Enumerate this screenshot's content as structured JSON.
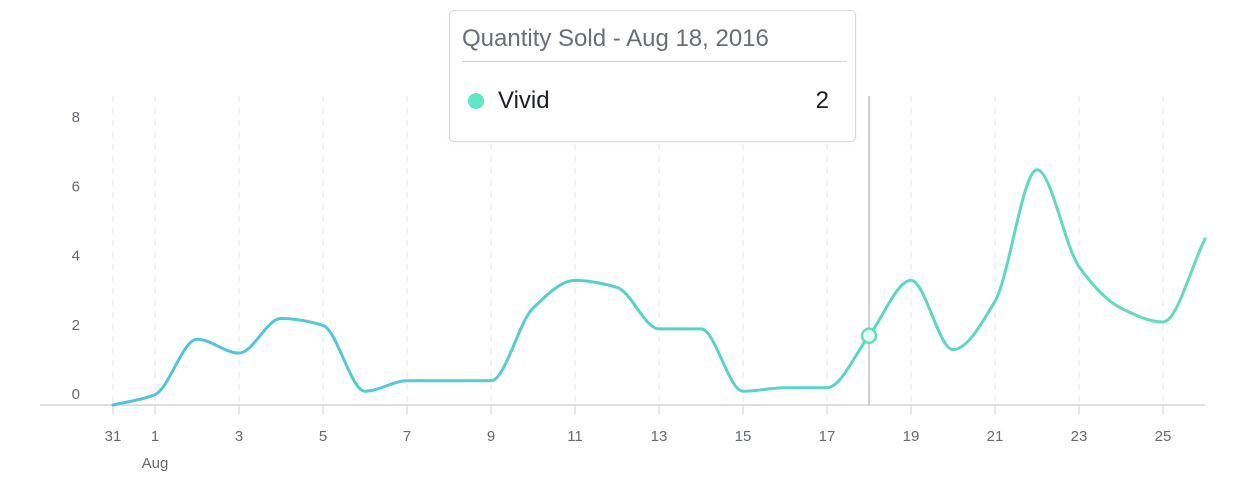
{
  "colors": {
    "series": "#3ec8c8",
    "series_start": "#4ac3e0",
    "series_end": "#5ee0b8",
    "marker_fill": "#e8fbf4",
    "tooltip_dot": "#5ee7c4",
    "grid": "#e4e6ea",
    "axis": "#c9ccd1",
    "crosshair": "#bfc2c7"
  },
  "tooltip": {
    "title": "Quantity Sold - Aug 18, 2016",
    "series_name": "Vivid",
    "series_value": "2",
    "dot_icon": "circle-dot-icon"
  },
  "chart_data": {
    "type": "line",
    "smooth": true,
    "xlabel": "",
    "ylabel": "",
    "ylim": [
      0,
      8.5
    ],
    "yticks": [
      "0",
      "2",
      "4",
      "6",
      "8"
    ],
    "xlim": [
      "2016-07-31",
      "2016-08-26"
    ],
    "xticks": [
      {
        "date": "2016-07-31",
        "label": "31",
        "sublabel": ""
      },
      {
        "date": "2016-08-01",
        "label": "1",
        "sublabel": "Aug"
      },
      {
        "date": "2016-08-03",
        "label": "3",
        "sublabel": ""
      },
      {
        "date": "2016-08-05",
        "label": "5",
        "sublabel": ""
      },
      {
        "date": "2016-08-07",
        "label": "7",
        "sublabel": ""
      },
      {
        "date": "2016-08-09",
        "label": "9",
        "sublabel": ""
      },
      {
        "date": "2016-08-11",
        "label": "11",
        "sublabel": ""
      },
      {
        "date": "2016-08-13",
        "label": "13",
        "sublabel": ""
      },
      {
        "date": "2016-08-15",
        "label": "15",
        "sublabel": ""
      },
      {
        "date": "2016-08-17",
        "label": "17",
        "sublabel": ""
      },
      {
        "date": "2016-08-19",
        "label": "19",
        "sublabel": ""
      },
      {
        "date": "2016-08-21",
        "label": "21",
        "sublabel": ""
      },
      {
        "date": "2016-08-23",
        "label": "23",
        "sublabel": ""
      },
      {
        "date": "2016-08-25",
        "label": "25",
        "sublabel": ""
      }
    ],
    "grid_x": true,
    "grid_y": false,
    "legend": "none",
    "series": [
      {
        "name": "Vivid",
        "x": [
          "2016-07-31",
          "2016-08-01",
          "2016-08-02",
          "2016-08-03",
          "2016-08-04",
          "2016-08-05",
          "2016-08-06",
          "2016-08-07",
          "2016-08-08",
          "2016-08-09",
          "2016-08-10",
          "2016-08-11",
          "2016-08-12",
          "2016-08-13",
          "2016-08-14",
          "2016-08-15",
          "2016-08-16",
          "2016-08-17",
          "2016-08-18",
          "2016-08-19",
          "2016-08-20",
          "2016-08-21",
          "2016-08-22",
          "2016-08-23",
          "2016-08-24",
          "2016-08-25",
          "2016-08-26"
        ],
        "y": [
          0,
          0.3,
          1.9,
          1.5,
          2.5,
          2.3,
          0.4,
          0.7,
          0.7,
          0.7,
          2.8,
          3.6,
          3.4,
          2.2,
          2.2,
          0.4,
          0.5,
          0.5,
          2,
          3.6,
          1.6,
          3,
          6.8,
          4,
          2.8,
          2.4,
          4.8
        ]
      }
    ],
    "highlight": {
      "date": "2016-08-18",
      "value": 2
    }
  }
}
